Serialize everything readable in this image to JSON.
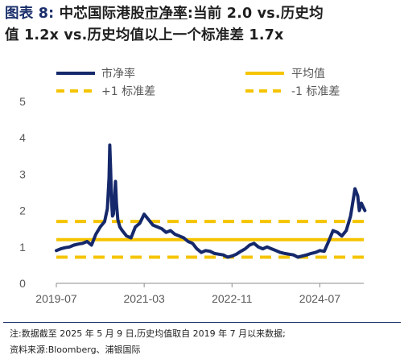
{
  "title": {
    "figure_label": "图表 8:",
    "line1_pre": "中芯国际港股",
    "line1_kw": "市净率",
    "line1_post": ":当前 2.0 vs.历史均",
    "line2": "值 1.2x vs.历史均值以上一个标准差 1.7x"
  },
  "colors": {
    "pb_series": "#15286b",
    "mean_line": "#f5c400",
    "std_lines": "#f5c400",
    "axis_text": "#595959",
    "title_accent": "#1a2f6b"
  },
  "chart_data": {
    "type": "line",
    "x_start": "2019-07",
    "x_end": "2025-05",
    "xticks": [
      "2019-07",
      "2021-03",
      "2022-11",
      "2024-07"
    ],
    "yticks": [
      "0",
      "1",
      "2",
      "3",
      "4",
      "5"
    ],
    "ylim": [
      0,
      5
    ],
    "grid": false,
    "legend_position": "top",
    "series": [
      {
        "name": "市净率",
        "style": "solid",
        "points": [
          [
            "2019-07",
            0.9
          ],
          [
            "2019-08",
            0.95
          ],
          [
            "2019-09",
            0.98
          ],
          [
            "2019-10",
            1.0
          ],
          [
            "2019-11",
            1.05
          ],
          [
            "2019-12",
            1.08
          ],
          [
            "2020-01",
            1.1
          ],
          [
            "2020-02",
            1.15
          ],
          [
            "2020-03",
            1.05
          ],
          [
            "2020-04",
            1.35
          ],
          [
            "2020-05",
            1.55
          ],
          [
            "2020-06",
            1.7
          ],
          [
            "2020-06-20",
            2.05
          ],
          [
            "2020-07-01",
            2.9
          ],
          [
            "2020-07-06",
            3.8
          ],
          [
            "2020-07-12",
            3.1
          ],
          [
            "2020-07-18",
            2.3
          ],
          [
            "2020-07-25",
            1.85
          ],
          [
            "2020-08",
            1.9
          ],
          [
            "2020-08-15",
            2.8
          ],
          [
            "2020-08-22",
            2.2
          ],
          [
            "2020-09",
            1.75
          ],
          [
            "2020-09-15",
            1.55
          ],
          [
            "2020-10",
            1.45
          ],
          [
            "2020-11",
            1.3
          ],
          [
            "2020-12",
            1.25
          ],
          [
            "2021-01",
            1.55
          ],
          [
            "2021-02",
            1.65
          ],
          [
            "2021-03",
            1.9
          ],
          [
            "2021-04",
            1.75
          ],
          [
            "2021-05",
            1.6
          ],
          [
            "2021-06",
            1.55
          ],
          [
            "2021-07",
            1.5
          ],
          [
            "2021-08",
            1.4
          ],
          [
            "2021-09",
            1.45
          ],
          [
            "2021-10",
            1.35
          ],
          [
            "2021-11",
            1.3
          ],
          [
            "2021-12",
            1.25
          ],
          [
            "2022-01",
            1.15
          ],
          [
            "2022-02",
            1.1
          ],
          [
            "2022-03",
            0.95
          ],
          [
            "2022-04",
            0.85
          ],
          [
            "2022-05",
            0.9
          ],
          [
            "2022-06",
            0.88
          ],
          [
            "2022-07",
            0.82
          ],
          [
            "2022-08",
            0.8
          ],
          [
            "2022-09",
            0.78
          ],
          [
            "2022-10",
            0.72
          ],
          [
            "2022-11",
            0.75
          ],
          [
            "2022-12",
            0.8
          ],
          [
            "2023-01",
            0.88
          ],
          [
            "2023-02",
            0.95
          ],
          [
            "2023-03",
            1.05
          ],
          [
            "2023-04",
            1.1
          ],
          [
            "2023-05",
            1.0
          ],
          [
            "2023-06",
            0.95
          ],
          [
            "2023-07",
            1.0
          ],
          [
            "2023-08",
            0.95
          ],
          [
            "2023-09",
            0.9
          ],
          [
            "2023-10",
            0.85
          ],
          [
            "2023-11",
            0.82
          ],
          [
            "2023-12",
            0.8
          ],
          [
            "2024-01",
            0.78
          ],
          [
            "2024-02",
            0.72
          ],
          [
            "2024-03",
            0.75
          ],
          [
            "2024-04",
            0.78
          ],
          [
            "2024-05",
            0.82
          ],
          [
            "2024-06",
            0.85
          ],
          [
            "2024-07",
            0.9
          ],
          [
            "2024-08",
            0.88
          ],
          [
            "2024-09",
            1.15
          ],
          [
            "2024-10",
            1.45
          ],
          [
            "2024-11",
            1.4
          ],
          [
            "2024-12",
            1.3
          ],
          [
            "2025-01",
            1.45
          ],
          [
            "2025-02",
            1.85
          ],
          [
            "2025-03",
            2.6
          ],
          [
            "2025-03-20",
            2.4
          ],
          [
            "2025-04",
            2.0
          ],
          [
            "2025-04-15",
            2.2
          ],
          [
            "2025-05-09",
            2.0
          ]
        ]
      },
      {
        "name": "平均值",
        "style": "solid",
        "value": 1.2
      },
      {
        "name": "+1 标准差",
        "style": "dashed",
        "value": 1.7
      },
      {
        "name": "-1 标准差",
        "style": "dashed",
        "value": 0.72
      }
    ]
  },
  "notes": {
    "line1": "注:数据截至 2025 年 5 月 9 日,历史均值取自 2019 年 7 月以来数据;",
    "line2": "资料来源:Bloomberg、浦银国际"
  }
}
